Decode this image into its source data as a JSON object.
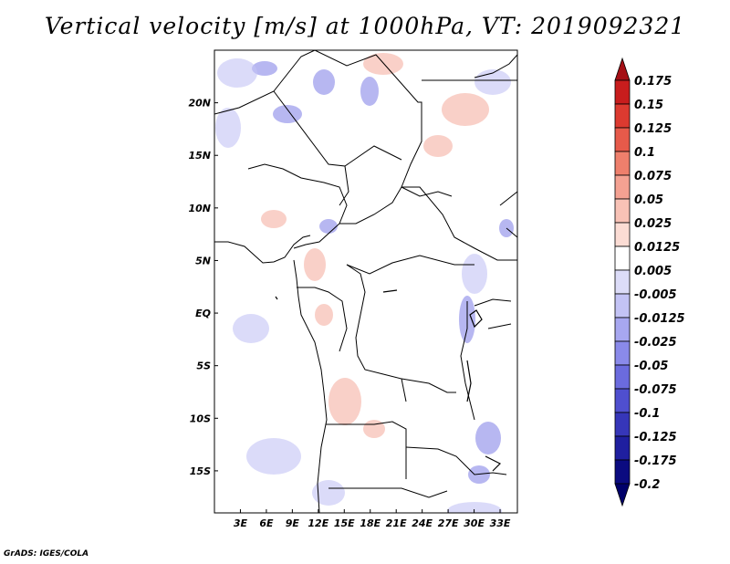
{
  "title": "Vertical velocity [m/s] at 1000hPa, VT: 2019092321",
  "credit": "GrADS: IGES/COLA",
  "map": {
    "lon_range": [
      0,
      35
    ],
    "lat_range": [
      -19,
      25
    ],
    "lat_ticks": [
      {
        "label": "20N",
        "value": 20
      },
      {
        "label": "15N",
        "value": 15
      },
      {
        "label": "10N",
        "value": 10
      },
      {
        "label": "5N",
        "value": 5
      },
      {
        "label": "EQ",
        "value": 0
      },
      {
        "label": "5S",
        "value": -5
      },
      {
        "label": "10S",
        "value": -10
      },
      {
        "label": "15S",
        "value": -15
      }
    ],
    "lon_ticks": [
      {
        "label": "3E",
        "value": 3
      },
      {
        "label": "6E",
        "value": 6
      },
      {
        "label": "9E",
        "value": 9
      },
      {
        "label": "12E",
        "value": 12
      },
      {
        "label": "15E",
        "value": 15
      },
      {
        "label": "18E",
        "value": 18
      },
      {
        "label": "21E",
        "value": 21
      },
      {
        "label": "24E",
        "value": 24
      },
      {
        "label": "27E",
        "value": 27
      },
      {
        "label": "30E",
        "value": 30
      },
      {
        "label": "33E",
        "value": 33
      }
    ]
  },
  "colorbar": {
    "levels": [
      "0.175",
      "0.15",
      "0.125",
      "0.1",
      "0.075",
      "0.05",
      "0.025",
      "0.0125",
      "0.005",
      "-0.005",
      "-0.0125",
      "-0.025",
      "-0.05",
      "-0.075",
      "-0.1",
      "-0.125",
      "-0.175",
      "-0.2"
    ],
    "colors": [
      "#a50f15",
      "#c81d1d",
      "#dc3a30",
      "#e65a4a",
      "#ee7f6c",
      "#f4a192",
      "#f8c2b6",
      "#fbdcd4",
      "#ffffff",
      "#dcdcf8",
      "#c3c3f5",
      "#a7a7f0",
      "#8a8aea",
      "#6b6bde",
      "#4f4fcf",
      "#3636b9",
      "#1f1f9f",
      "#0b0b80",
      "#00006a"
    ]
  }
}
